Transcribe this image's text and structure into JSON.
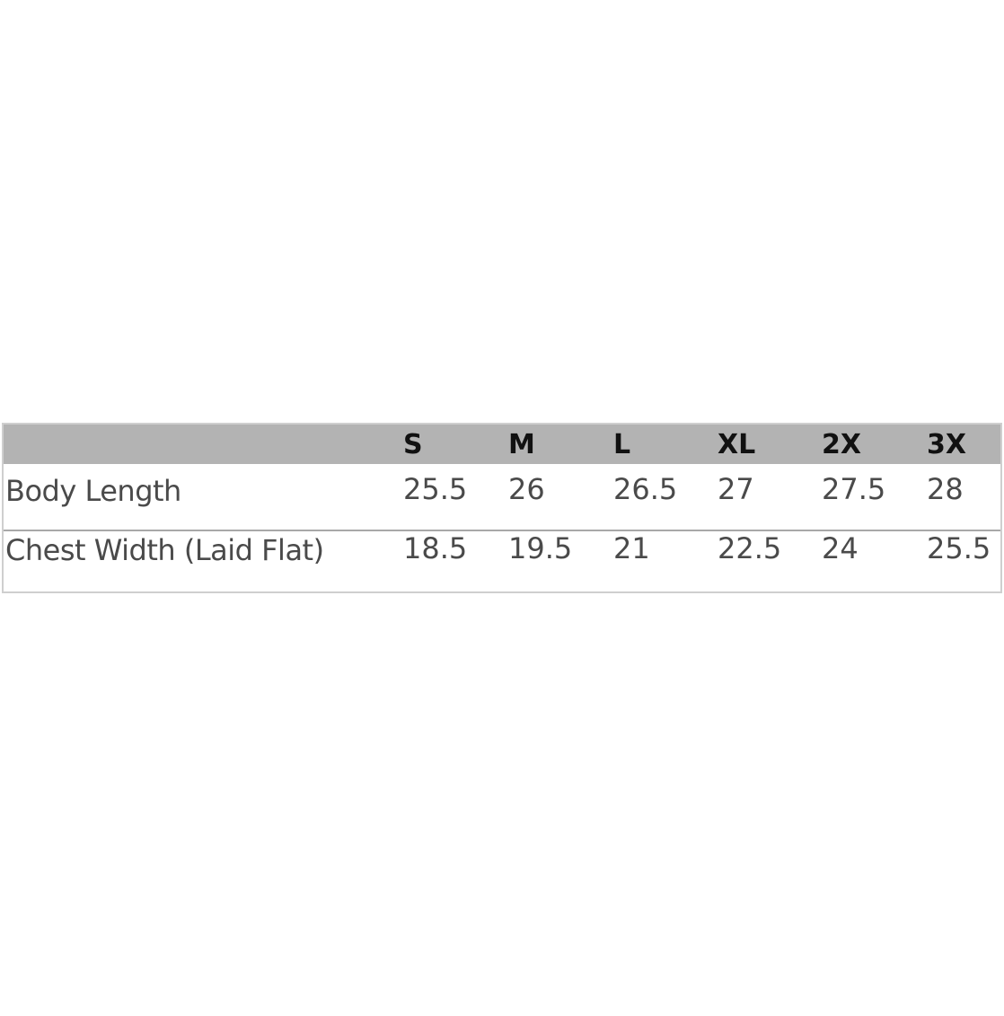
{
  "table": {
    "columns": [
      "S",
      "M",
      "L",
      "XL",
      "2X",
      "3X"
    ],
    "rows": [
      {
        "label": "Body Length",
        "values": [
          25.5,
          26,
          26.5,
          27,
          27.5,
          28
        ]
      },
      {
        "label": "Chest Width (Laid Flat)",
        "values": [
          18.5,
          19.5,
          21,
          22.5,
          24,
          25.5
        ]
      }
    ]
  }
}
